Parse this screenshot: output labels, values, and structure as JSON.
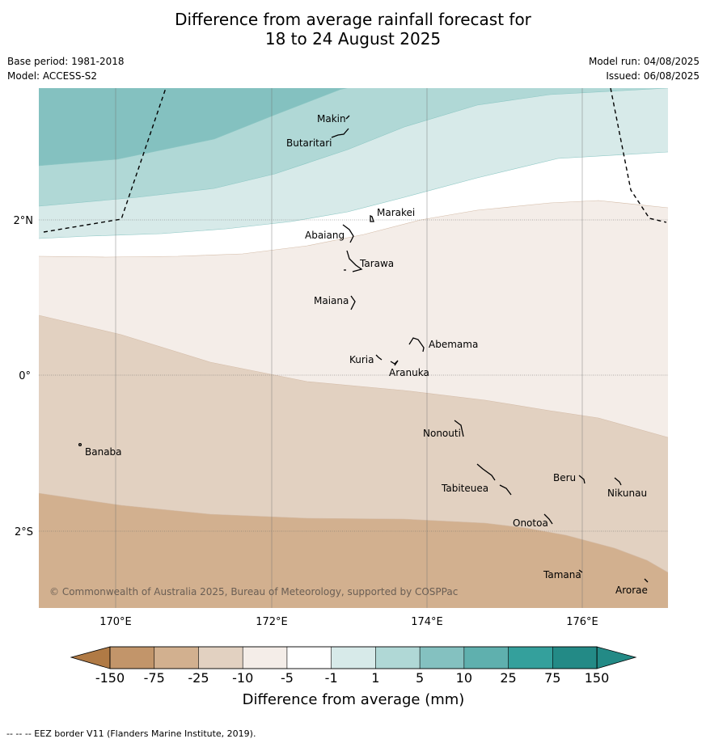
{
  "title": {
    "line1": "Difference from average rainfall forecast for",
    "line2": "18 to 24 August 2025"
  },
  "meta": {
    "base_period": "Base period: 1981-2018",
    "model": "Model: ACCESS-S2",
    "model_run": "Model run: 04/08/2025",
    "issued": "Issued: 06/08/2025"
  },
  "map": {
    "longitude_labels": [
      "170°E",
      "172°E",
      "174°E",
      "176°E"
    ],
    "latitude_labels": [
      "2°N",
      "0°",
      "2°S"
    ],
    "copyright": "© Commonwealth of Australia 2025, Bureau of Meteorology, supported by COSPPac",
    "places": [
      {
        "name": "Makin"
      },
      {
        "name": "Butaritari"
      },
      {
        "name": "Marakei"
      },
      {
        "name": "Abaiang"
      },
      {
        "name": "Tarawa"
      },
      {
        "name": "Maiana"
      },
      {
        "name": "Abemama"
      },
      {
        "name": "Kuria"
      },
      {
        "name": "Aranuka"
      },
      {
        "name": "Nonouti"
      },
      {
        "name": "Banaba"
      },
      {
        "name": "Beru"
      },
      {
        "name": "Tabiteuea"
      },
      {
        "name": "Nikunau"
      },
      {
        "name": "Onotoa"
      },
      {
        "name": "Tamana"
      },
      {
        "name": "Arorae"
      }
    ]
  },
  "legend": {
    "title": "Difference from average (mm)",
    "tick_labels": [
      "-150",
      "-75",
      "-25",
      "-10",
      "-5",
      "-1",
      "1",
      "5",
      "10",
      "25",
      "75",
      "150"
    ],
    "colors": [
      "#b07a45",
      "#c2956a",
      "#d2b08f",
      "#e2d1c1",
      "#f4ede8",
      "#ffffff",
      "#d7eae9",
      "#b0d8d6",
      "#84c1c0",
      "#5fb0ae",
      "#34a09c",
      "#238a86"
    ]
  },
  "footer": "--  --  -- EEZ border V11 (Flanders Marine Institute, 2019)."
}
